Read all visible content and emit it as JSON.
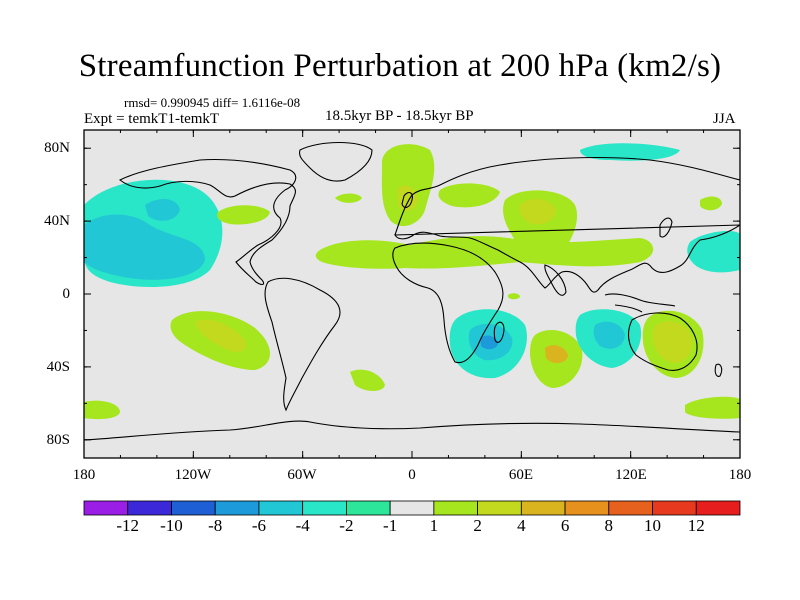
{
  "title": "Streamfunction Perturbation at 200 hPa (km2/s)",
  "stats": "rmsd= 0.990945 diff= 1.6116e-08",
  "experiment": "Expt = temkT1-temkT",
  "period": "18.5kyr BP - 18.5kyr BP",
  "season": "JJA",
  "lat_labels": [
    "80N",
    "40N",
    "0",
    "40S",
    "80S"
  ],
  "lon_labels": [
    "180",
    "120W",
    "60W",
    "0",
    "60E",
    "120E",
    "180"
  ],
  "colorbar": {
    "labels": [
      "-12",
      "-10",
      "-8",
      "-6",
      "-4",
      "-2",
      "-1",
      "1",
      "2",
      "4",
      "6",
      "8",
      "10",
      "12"
    ],
    "colors": [
      "#9a1ee6",
      "#3c28d9",
      "#1f5fd6",
      "#1d9ad9",
      "#22c7d6",
      "#29e6c8",
      "#2de69a",
      "#e6e6e6",
      "#a6e61e",
      "#c3d91e",
      "#d9b41e",
      "#e6911e",
      "#e6601e",
      "#e6391e",
      "#e61e1e"
    ]
  },
  "chart_data": {
    "type": "contour-map",
    "variable": "Streamfunction Perturbation at 200 hPa",
    "units": "km2/s",
    "projection": "cylindrical-equidistant",
    "lon_range": [
      -180,
      180
    ],
    "lat_range": [
      -90,
      90
    ],
    "levels": [
      -12,
      -10,
      -8,
      -6,
      -4,
      -2,
      -1,
      1,
      2,
      4,
      6,
      8,
      10,
      12
    ],
    "features": [
      {
        "name": "north-pacific-low",
        "lon": -150,
        "lat": 30,
        "value": -3
      },
      {
        "name": "central-pacific-sw-high",
        "lon": -110,
        "lat": -30,
        "value": 3
      },
      {
        "name": "south-pacific-high-small",
        "lon": -60,
        "lat": -57,
        "value": 1.5
      },
      {
        "name": "north-atlantic-high",
        "lon": 0,
        "lat": 50,
        "value": 3
      },
      {
        "name": "central-asia-high",
        "lon": 70,
        "lat": 40,
        "value": 4
      },
      {
        "name": "indian-ocean-low",
        "lon": 45,
        "lat": -28,
        "value": -4
      },
      {
        "name": "south-indian-high",
        "lon": 70,
        "lat": -30,
        "value": 3
      },
      {
        "name": "australia-high",
        "lon": 138,
        "lat": -25,
        "value": 4
      },
      {
        "name": "west-australia-low",
        "lon": 110,
        "lat": -25,
        "value": -3
      },
      {
        "name": "west-pacific-low",
        "lon": 170,
        "lat": 25,
        "value": -1.5
      },
      {
        "name": "arctic-low",
        "lon": 60,
        "lat": 80,
        "value": -1.5
      }
    ]
  }
}
